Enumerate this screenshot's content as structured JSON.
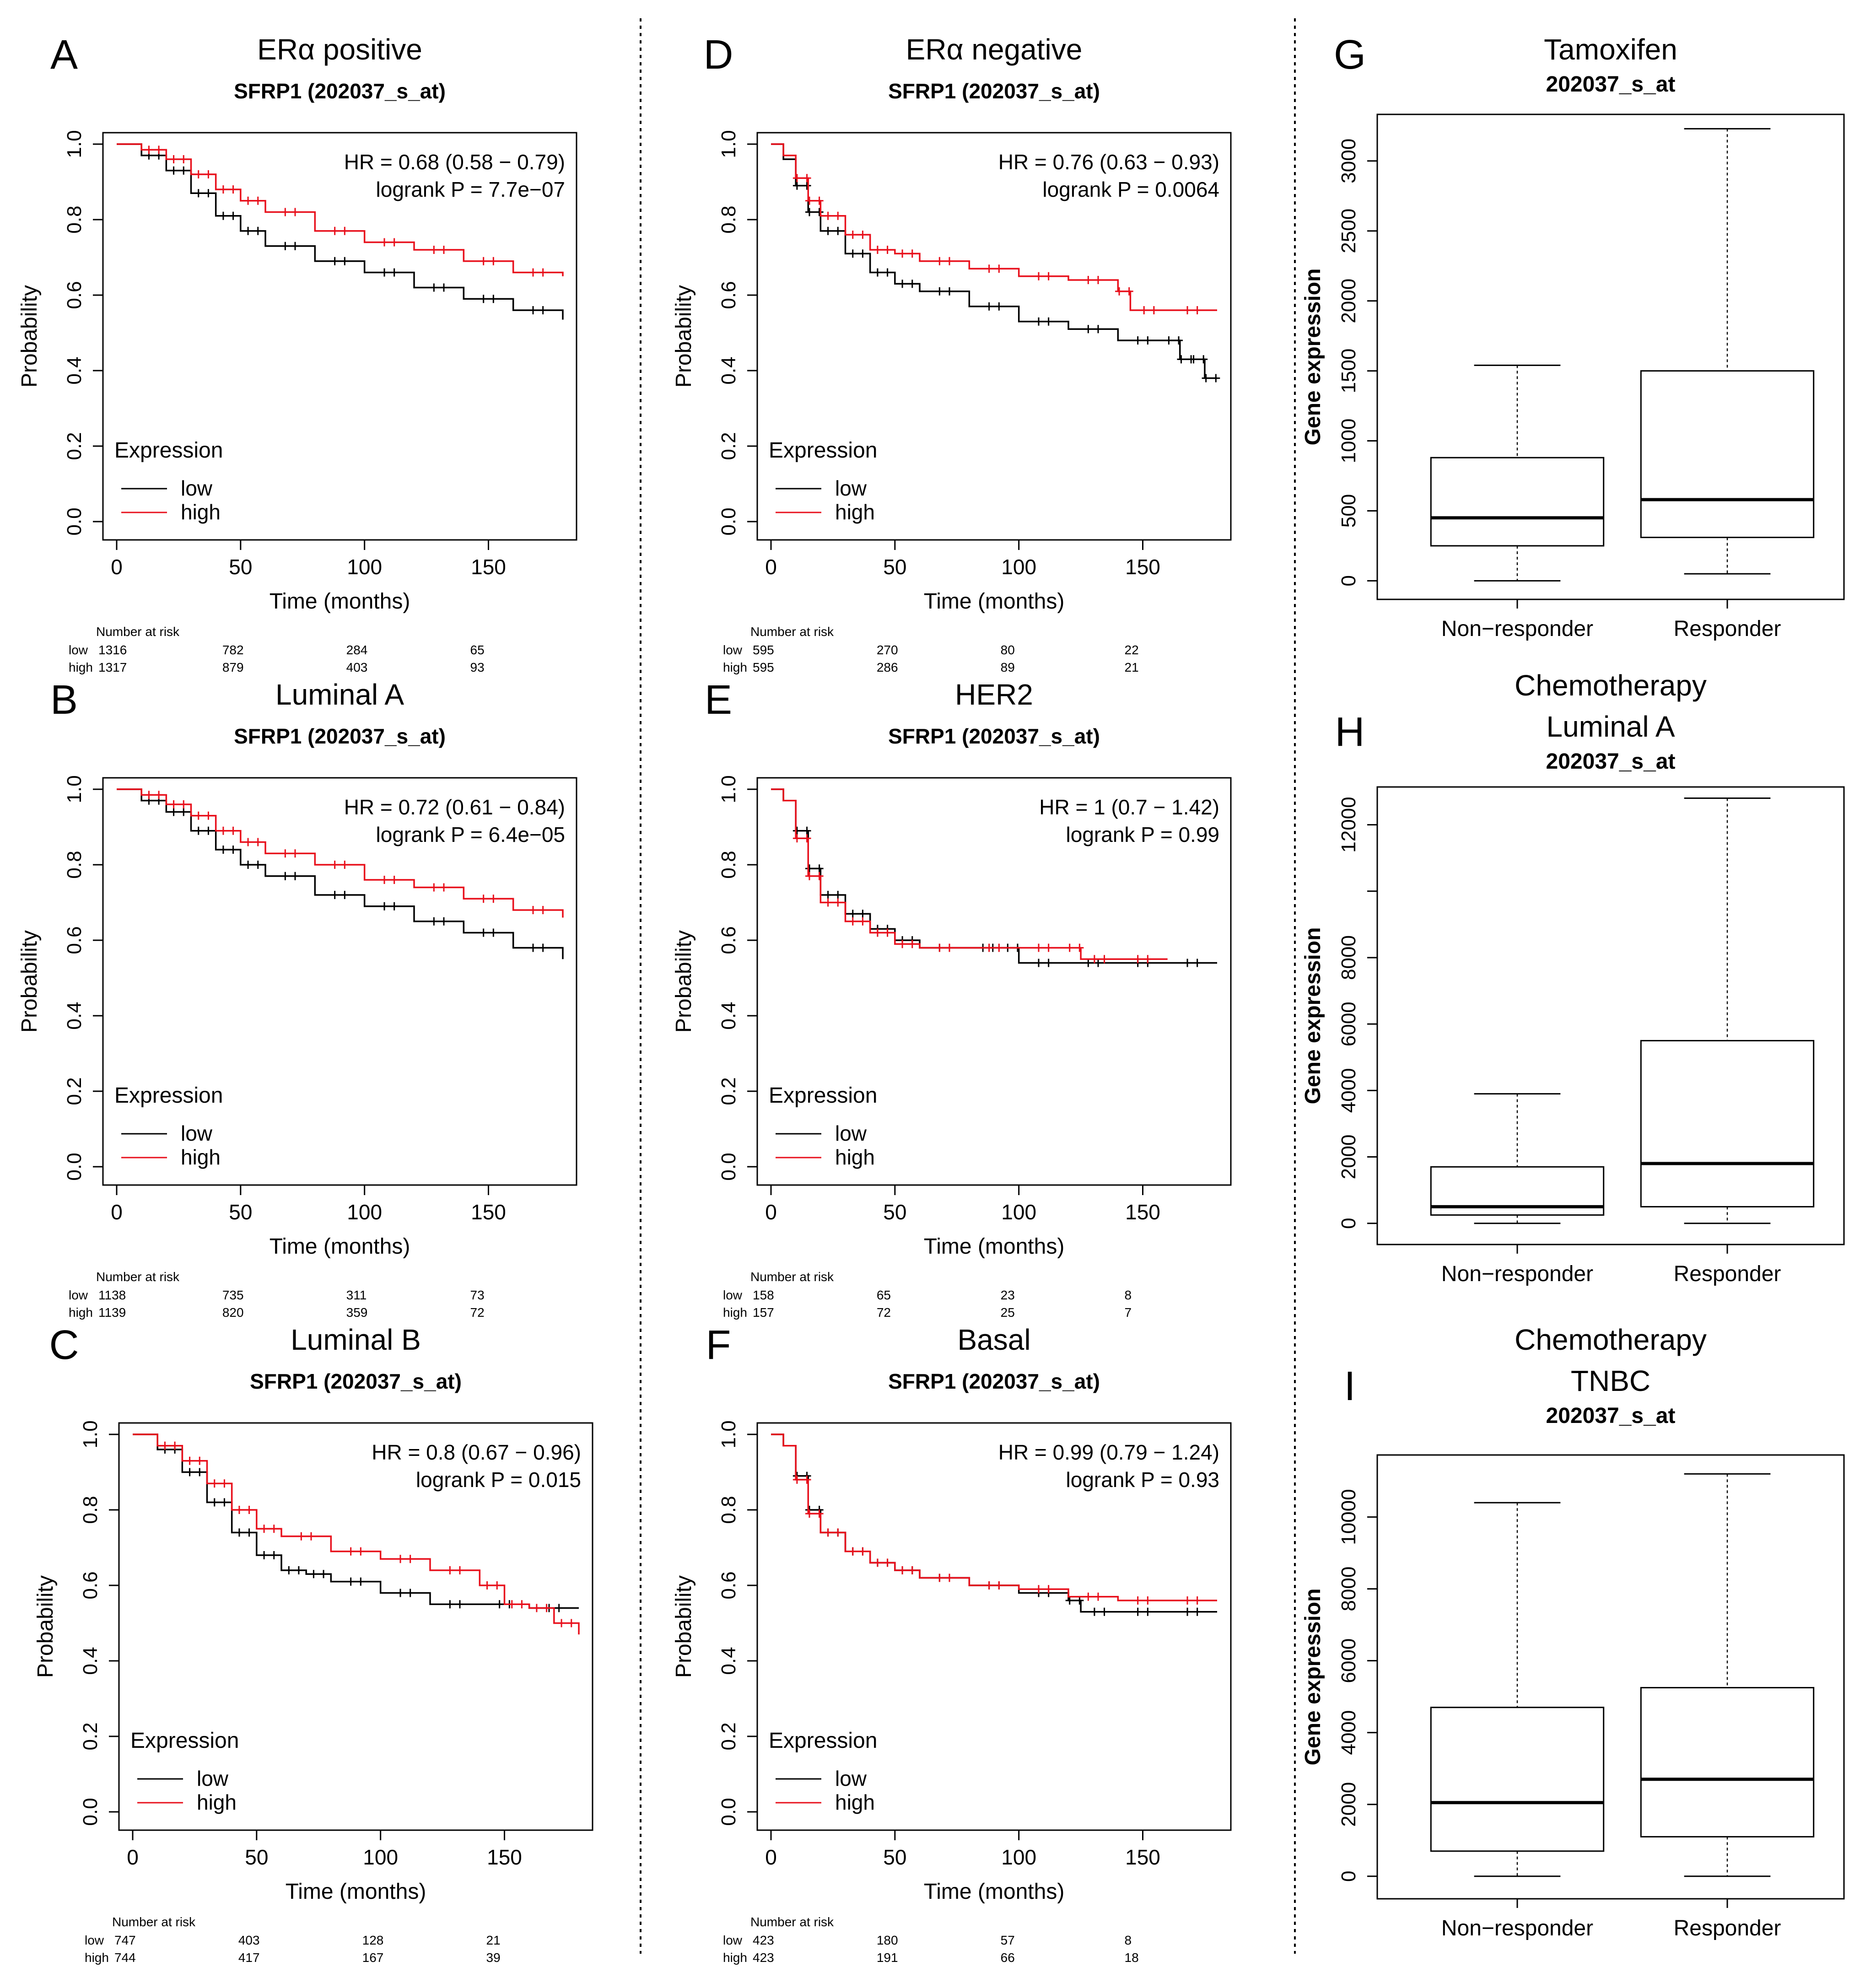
{
  "colors": {
    "low": "#000000",
    "high": "#e8101c"
  },
  "km_common": {
    "xlabel": "Time (months)",
    "ylabel": "Probability",
    "legend_title": "Expression",
    "legend_low": "low",
    "legend_high": "high",
    "risk_title": "Number at risk",
    "risk_low": "low",
    "risk_high": "high",
    "xticks": [
      "0",
      "50",
      "100",
      "150"
    ],
    "yticks": [
      "0.0",
      "0.2",
      "0.4",
      "0.6",
      "0.8",
      "1.0"
    ]
  },
  "box_common": {
    "ylabel": "Gene expression",
    "categories": [
      "Non−responder",
      "Responder"
    ]
  },
  "chart_data": [
    {
      "type": "line",
      "letter": "A",
      "title": "ERα positive",
      "subtitle": "SFRP1 (202037_s_at)",
      "hr": "HR = 0.68 (0.58 − 0.79)",
      "logrank": "logrank P = 7.7e−07",
      "xlim": [
        0,
        180
      ],
      "ylim": [
        0,
        1
      ],
      "series": [
        {
          "name": "low",
          "x": [
            0,
            10,
            20,
            30,
            40,
            50,
            60,
            80,
            100,
            120,
            140,
            160,
            180
          ],
          "y": [
            1.0,
            0.97,
            0.93,
            0.87,
            0.81,
            0.77,
            0.73,
            0.69,
            0.66,
            0.62,
            0.59,
            0.56,
            0.535
          ]
        },
        {
          "name": "high",
          "x": [
            0,
            10,
            20,
            30,
            40,
            50,
            60,
            80,
            100,
            120,
            140,
            160,
            180
          ],
          "y": [
            1.0,
            0.985,
            0.96,
            0.92,
            0.88,
            0.85,
            0.82,
            0.77,
            0.74,
            0.72,
            0.69,
            0.66,
            0.65
          ]
        }
      ],
      "risk": {
        "low": [
          "1316",
          "782",
          "284",
          "65"
        ],
        "high": [
          "1317",
          "879",
          "403",
          "93"
        ]
      }
    },
    {
      "type": "line",
      "letter": "B",
      "title": "Luminal A",
      "subtitle": "SFRP1 (202037_s_at)",
      "hr": "HR = 0.72 (0.61 − 0.84)",
      "logrank": "logrank P = 6.4e−05",
      "xlim": [
        0,
        180
      ],
      "ylim": [
        0,
        1
      ],
      "series": [
        {
          "name": "low",
          "x": [
            0,
            10,
            20,
            30,
            40,
            50,
            60,
            80,
            100,
            120,
            140,
            160,
            180
          ],
          "y": [
            1.0,
            0.97,
            0.94,
            0.89,
            0.84,
            0.8,
            0.77,
            0.72,
            0.69,
            0.65,
            0.62,
            0.58,
            0.55
          ]
        },
        {
          "name": "high",
          "x": [
            0,
            10,
            20,
            30,
            40,
            50,
            60,
            80,
            100,
            120,
            140,
            160,
            180
          ],
          "y": [
            1.0,
            0.985,
            0.96,
            0.93,
            0.89,
            0.86,
            0.83,
            0.8,
            0.76,
            0.74,
            0.71,
            0.68,
            0.66
          ]
        }
      ],
      "risk": {
        "low": [
          "1138",
          "735",
          "311",
          "73"
        ],
        "high": [
          "1139",
          "820",
          "359",
          "72"
        ]
      }
    },
    {
      "type": "line",
      "letter": "C",
      "title": "Luminal B",
      "subtitle": "SFRP1 (202037_s_at)",
      "hr": "HR = 0.8 (0.67 − 0.96)",
      "logrank": "logrank P = 0.015",
      "xlim": [
        0,
        180
      ],
      "ylim": [
        0,
        1
      ],
      "series": [
        {
          "name": "low",
          "x": [
            0,
            10,
            20,
            30,
            40,
            50,
            60,
            70,
            80,
            100,
            120,
            140,
            160,
            180
          ],
          "y": [
            1.0,
            0.96,
            0.9,
            0.82,
            0.74,
            0.68,
            0.64,
            0.63,
            0.61,
            0.58,
            0.55,
            0.55,
            0.54,
            0.54
          ]
        },
        {
          "name": "high",
          "x": [
            0,
            10,
            20,
            30,
            40,
            50,
            60,
            80,
            100,
            120,
            140,
            150,
            160,
            170,
            180
          ],
          "y": [
            1.0,
            0.97,
            0.93,
            0.87,
            0.8,
            0.75,
            0.73,
            0.69,
            0.67,
            0.64,
            0.6,
            0.55,
            0.54,
            0.5,
            0.47
          ]
        }
      ],
      "risk": {
        "low": [
          "747",
          "403",
          "128",
          "21"
        ],
        "high": [
          "744",
          "417",
          "167",
          "39"
        ]
      }
    },
    {
      "type": "line",
      "letter": "D",
      "title": "ERα negative",
      "subtitle": "SFRP1 (202037_s_at)",
      "hr": "HR = 0.76 (0.63 − 0.93)",
      "logrank": "logrank P = 0.0064",
      "xlim": [
        0,
        180
      ],
      "ylim": [
        0,
        1
      ],
      "series": [
        {
          "name": "low",
          "x": [
            0,
            5,
            10,
            15,
            20,
            30,
            40,
            50,
            60,
            80,
            100,
            120,
            140,
            160,
            165,
            170,
            175,
            180
          ],
          "y": [
            1.0,
            0.96,
            0.89,
            0.82,
            0.77,
            0.71,
            0.66,
            0.63,
            0.61,
            0.57,
            0.53,
            0.51,
            0.48,
            0.48,
            0.43,
            0.43,
            0.38,
            0.38
          ]
        },
        {
          "name": "high",
          "x": [
            0,
            5,
            10,
            15,
            20,
            30,
            40,
            50,
            60,
            80,
            100,
            120,
            140,
            145,
            160,
            180
          ],
          "y": [
            1.0,
            0.97,
            0.91,
            0.85,
            0.81,
            0.76,
            0.72,
            0.71,
            0.69,
            0.67,
            0.65,
            0.64,
            0.61,
            0.56,
            0.56,
            0.56
          ]
        }
      ],
      "risk": {
        "low": [
          "595",
          "270",
          "80",
          "22"
        ],
        "high": [
          "595",
          "286",
          "89",
          "21"
        ]
      }
    },
    {
      "type": "line",
      "letter": "E",
      "title": "HER2",
      "subtitle": "SFRP1 (202037_s_at)",
      "hr": "HR = 1 (0.7 − 1.42)",
      "logrank": "logrank P = 0.99",
      "xlim": [
        0,
        180
      ],
      "ylim": [
        0,
        1
      ],
      "series": [
        {
          "name": "low",
          "x": [
            0,
            5,
            10,
            15,
            20,
            30,
            40,
            50,
            60,
            80,
            95,
            100,
            120,
            140,
            160,
            180
          ],
          "y": [
            1.0,
            0.97,
            0.89,
            0.79,
            0.72,
            0.67,
            0.63,
            0.6,
            0.58,
            0.58,
            0.58,
            0.54,
            0.54,
            0.54,
            0.54,
            0.54
          ]
        },
        {
          "name": "high",
          "x": [
            0,
            5,
            10,
            15,
            20,
            30,
            40,
            50,
            60,
            80,
            100,
            120,
            125,
            140,
            160
          ],
          "y": [
            1.0,
            0.97,
            0.87,
            0.77,
            0.7,
            0.65,
            0.62,
            0.59,
            0.58,
            0.58,
            0.58,
            0.58,
            0.55,
            0.55,
            0.55
          ]
        }
      ],
      "risk": {
        "low": [
          "158",
          "65",
          "23",
          "8"
        ],
        "high": [
          "157",
          "72",
          "25",
          "7"
        ]
      }
    },
    {
      "type": "line",
      "letter": "F",
      "title": "Basal",
      "subtitle": "SFRP1 (202037_s_at)",
      "hr": "HR = 0.99 (0.79 − 1.24)",
      "logrank": "logrank P = 0.93",
      "xlim": [
        0,
        180
      ],
      "ylim": [
        0,
        1
      ],
      "series": [
        {
          "name": "low",
          "x": [
            0,
            5,
            10,
            15,
            20,
            30,
            40,
            50,
            60,
            80,
            100,
            120,
            125,
            140,
            160,
            180
          ],
          "y": [
            1.0,
            0.97,
            0.89,
            0.8,
            0.74,
            0.69,
            0.66,
            0.64,
            0.62,
            0.6,
            0.58,
            0.56,
            0.53,
            0.53,
            0.53,
            0.53
          ]
        },
        {
          "name": "high",
          "x": [
            0,
            5,
            10,
            15,
            20,
            30,
            40,
            50,
            60,
            80,
            100,
            120,
            140,
            160,
            180
          ],
          "y": [
            1.0,
            0.97,
            0.88,
            0.79,
            0.74,
            0.69,
            0.66,
            0.64,
            0.62,
            0.6,
            0.59,
            0.57,
            0.56,
            0.56,
            0.56
          ]
        }
      ],
      "risk": {
        "low": [
          "423",
          "180",
          "57",
          "8"
        ],
        "high": [
          "423",
          "191",
          "66",
          "18"
        ]
      }
    },
    {
      "type": "box",
      "letter": "G",
      "title_lines": [
        "Tamoxifen"
      ],
      "subtitle": "202037_s_at",
      "ylim": [
        -100,
        3300
      ],
      "yticks": [
        "0",
        "500",
        "1000",
        "1500",
        "2000",
        "2500",
        "3000"
      ],
      "minor_yticks": [],
      "boxes": [
        {
          "name": "Non−responder",
          "min": 0,
          "q1": 250,
          "median": 450,
          "q3": 880,
          "max": 1540
        },
        {
          "name": "Responder",
          "min": 50,
          "q1": 310,
          "median": 580,
          "q3": 1500,
          "max": 3230
        }
      ]
    },
    {
      "type": "box",
      "letter": "H",
      "title_lines": [
        "Chemotherapy",
        "Luminal A"
      ],
      "subtitle": "202037_s_at",
      "ylim": [
        -500,
        13000
      ],
      "yticks": [
        "0",
        "2000",
        "4000",
        "6000",
        "8000",
        "",
        "12000"
      ],
      "minor_yticks": [
        10000
      ],
      "boxes": [
        {
          "name": "Non−responder",
          "min": 0,
          "q1": 250,
          "median": 500,
          "q3": 1700,
          "max": 3900
        },
        {
          "name": "Responder",
          "min": 0,
          "q1": 500,
          "median": 1800,
          "q3": 5500,
          "max": 12800
        }
      ]
    },
    {
      "type": "box",
      "letter": "I",
      "title_lines": [
        "Chemotherapy",
        "TNBC"
      ],
      "subtitle": "202037_s_at",
      "ylim": [
        -500,
        11600
      ],
      "yticks": [
        "0",
        "2000",
        "4000",
        "6000",
        "8000",
        "10000"
      ],
      "minor_yticks": [],
      "boxes": [
        {
          "name": "Non−responder",
          "min": 0,
          "q1": 700,
          "median": 2050,
          "q3": 4700,
          "max": 10400
        },
        {
          "name": "Responder",
          "min": 0,
          "q1": 1100,
          "median": 2700,
          "q3": 5250,
          "max": 11200
        }
      ]
    }
  ]
}
